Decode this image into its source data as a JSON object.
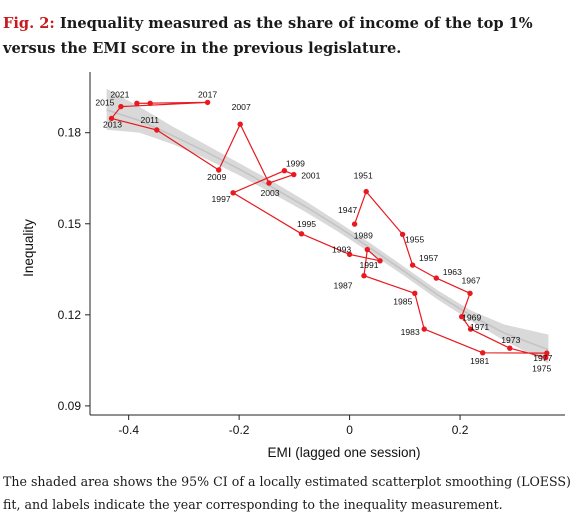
{
  "figure": {
    "number": "Fig. 2:",
    "title": "Inequality measured as the share of income of the top 1% versus the EMI score in the previous legislature.",
    "caption": "The shaded area shows the 95% CI of a locally estimated scatterplot smoothing (LOESS) fit, and labels indicate the year corresponding to the inequality measurement."
  },
  "chart_data": {
    "type": "scatter",
    "xlabel": "EMI (lagged one session)",
    "ylabel": "Inequality",
    "xlim": [
      -0.47,
      0.39
    ],
    "ylim": [
      0.087,
      0.2
    ],
    "xticks": [
      -0.4,
      -0.2,
      0,
      0.2
    ],
    "xtick_labels": [
      "-0.4",
      "-0.2",
      "0",
      "0.2"
    ],
    "yticks": [
      0.09,
      0.12,
      0.15,
      0.18
    ],
    "ytick_labels": [
      "0.09",
      "0.12",
      "0.15",
      "0.18"
    ],
    "grid": false,
    "legend": "none",
    "point_color": "#e8191f",
    "line_color": "#e8191f",
    "band_color": "#d9d9d9",
    "smooth_color": "#c4c4c4",
    "connected_in_year_order": true,
    "points": [
      {
        "year": "1947",
        "x": 0.009,
        "y": 0.1499
      },
      {
        "year": "1951",
        "x": 0.03,
        "y": 0.1606
      },
      {
        "year": "1955",
        "x": 0.096,
        "y": 0.1465
      },
      {
        "year": "1957",
        "x": 0.114,
        "y": 0.1364
      },
      {
        "year": "1963",
        "x": 0.157,
        "y": 0.1321
      },
      {
        "year": "1967",
        "x": 0.218,
        "y": 0.1271
      },
      {
        "year": "1969",
        "x": 0.203,
        "y": 0.1194
      },
      {
        "year": "1971",
        "x": 0.219,
        "y": 0.1153
      },
      {
        "year": "1973",
        "x": 0.29,
        "y": 0.109
      },
      {
        "year": "1975",
        "x": 0.355,
        "y": 0.1059
      },
      {
        "year": "1977",
        "x": 0.357,
        "y": 0.1074
      },
      {
        "year": "1981",
        "x": 0.241,
        "y": 0.1075
      },
      {
        "year": "1983",
        "x": 0.135,
        "y": 0.1153
      },
      {
        "year": "1985",
        "x": 0.118,
        "y": 0.1271
      },
      {
        "year": "1987",
        "x": 0.026,
        "y": 0.1329
      },
      {
        "year": "1989",
        "x": 0.032,
        "y": 0.1415
      },
      {
        "year": "1991",
        "x": 0.055,
        "y": 0.1378
      },
      {
        "year": "1993",
        "x": 0.0,
        "y": 0.1399
      },
      {
        "year": "1995",
        "x": -0.087,
        "y": 0.1467
      },
      {
        "year": "1997",
        "x": -0.211,
        "y": 0.1602
      },
      {
        "year": "1999",
        "x": -0.118,
        "y": 0.1675
      },
      {
        "year": "2001",
        "x": -0.101,
        "y": 0.1662
      },
      {
        "year": "2003",
        "x": -0.146,
        "y": 0.1634
      },
      {
        "year": "2007",
        "x": -0.198,
        "y": 0.1828
      },
      {
        "year": "2009",
        "x": -0.237,
        "y": 0.1677
      },
      {
        "year": "2011",
        "x": -0.349,
        "y": 0.1809
      },
      {
        "year": "2013",
        "x": -0.431,
        "y": 0.1847
      },
      {
        "year": "2015",
        "x": -0.414,
        "y": 0.1886
      },
      {
        "year": "2017",
        "x": -0.257,
        "y": 0.19
      },
      {
        "year": "2021",
        "x": -0.385,
        "y": 0.1897
      },
      {
        "year": "2021b",
        "x": -0.361,
        "y": 0.1897
      }
    ],
    "loess": {
      "x": [
        -0.44,
        -0.38,
        -0.32,
        -0.26,
        -0.2,
        -0.14,
        -0.08,
        -0.02,
        0.04,
        0.1,
        0.16,
        0.22,
        0.28,
        0.36
      ],
      "y": [
        0.1875,
        0.184,
        0.179,
        0.1737,
        0.168,
        0.162,
        0.1557,
        0.1489,
        0.1417,
        0.1342,
        0.1265,
        0.1197,
        0.114,
        0.1085
      ],
      "lower": [
        0.181,
        0.18,
        0.1762,
        0.1714,
        0.166,
        0.16,
        0.1539,
        0.1473,
        0.1401,
        0.1327,
        0.125,
        0.118,
        0.1115,
        0.104
      ],
      "upper": [
        0.1945,
        0.1885,
        0.182,
        0.176,
        0.17,
        0.164,
        0.1575,
        0.1505,
        0.1433,
        0.1357,
        0.128,
        0.1214,
        0.1168,
        0.1135
      ]
    }
  }
}
